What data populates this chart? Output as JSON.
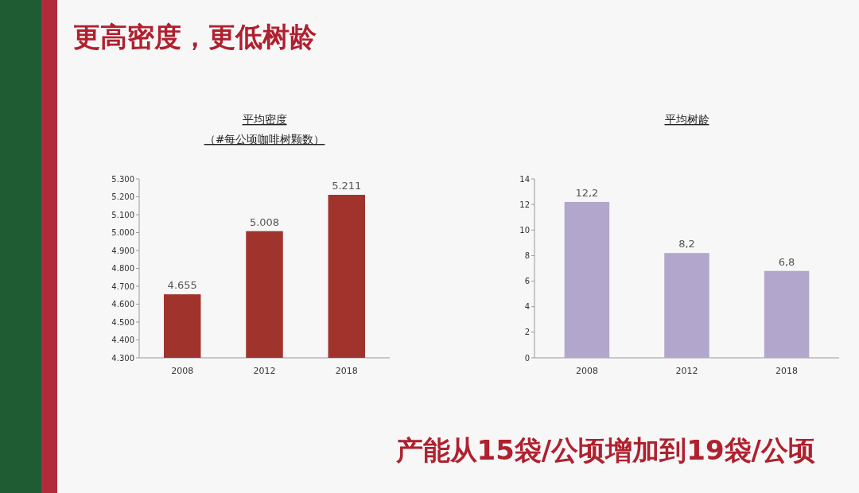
{
  "chart_data": [
    {
      "type": "bar",
      "title": "平均密度",
      "subtitle": "（#每公顷咖啡树颗数）",
      "categories": [
        "2008",
        "2012",
        "2018"
      ],
      "values": [
        4655,
        5008,
        5211
      ],
      "value_labels": [
        "4.655",
        "5.008",
        "5.211"
      ],
      "color": "#a0342c",
      "ylim": [
        4300,
        5300
      ],
      "yticks": [
        {
          "value": 4300,
          "label": "4.300"
        },
        {
          "value": 4400,
          "label": "4.400"
        },
        {
          "value": 4500,
          "label": "4.500"
        },
        {
          "value": 4600,
          "label": "4.600"
        },
        {
          "value": 4700,
          "label": "4.700"
        },
        {
          "value": 4800,
          "label": "4.800"
        },
        {
          "value": 4900,
          "label": "4.900"
        },
        {
          "value": 5000,
          "label": "5.000"
        },
        {
          "value": 5100,
          "label": "5.100"
        },
        {
          "value": 5200,
          "label": "5.200"
        },
        {
          "value": 5300,
          "label": "5.300"
        }
      ],
      "grid": false,
      "annotations": [
        "更高密度，更低树龄",
        "产能从15袋/公顷增加到19袋/公顷"
      ]
    },
    {
      "type": "bar",
      "title": "平均树龄",
      "categories": [
        "2008",
        "2012",
        "2018"
      ],
      "values": [
        12.2,
        8.2,
        6.8
      ],
      "value_labels": [
        "12,2",
        "8,2",
        "6,8"
      ],
      "color": "#b3a6cc",
      "ylim": [
        0,
        14
      ],
      "yticks": [
        0,
        2,
        4,
        6,
        8,
        10,
        12,
        14
      ],
      "grid": false
    }
  ]
}
